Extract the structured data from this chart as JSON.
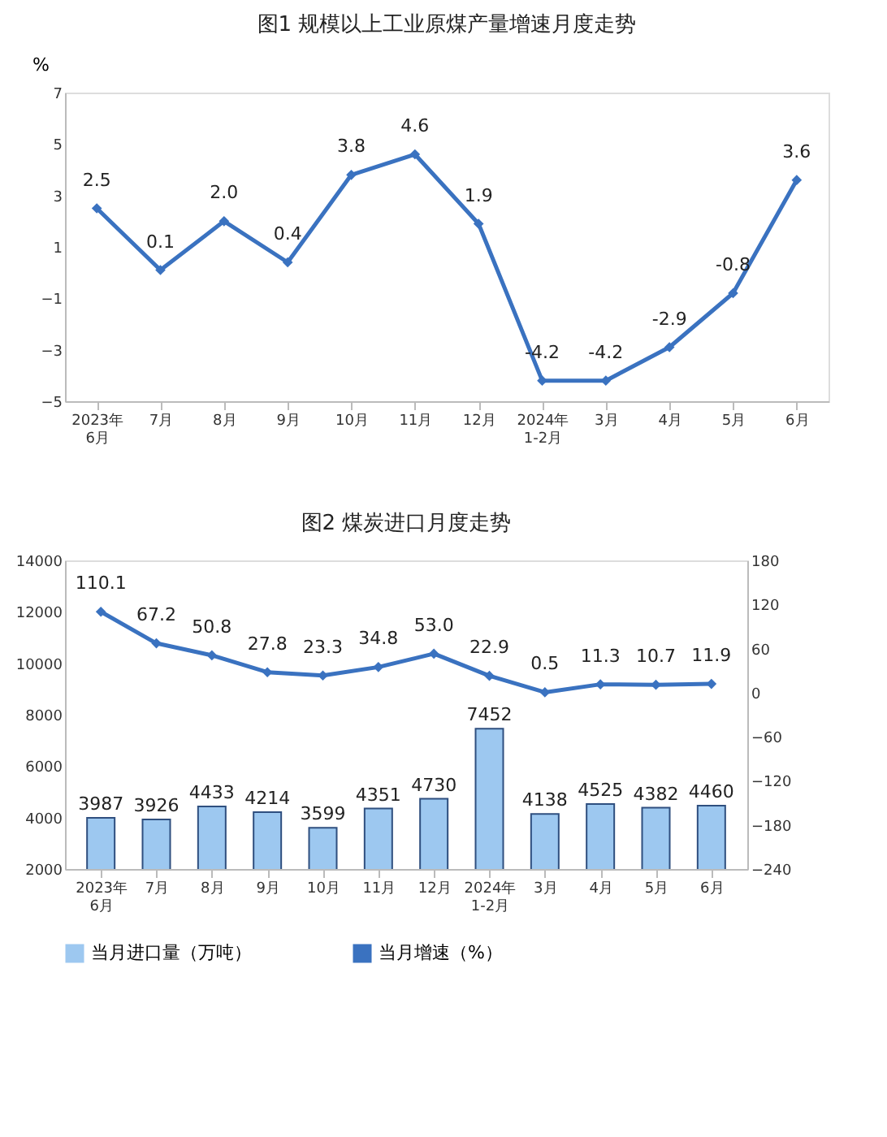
{
  "chart_data": [
    {
      "type": "line",
      "title": "图1  规模以上工业原煤产量增速月度走势",
      "ylabel": "%",
      "categories": [
        "2023年\n6月",
        "7月",
        "8月",
        "9月",
        "10月",
        "11月",
        "12月",
        "2024年\n1-2月",
        "3月",
        "4月",
        "5月",
        "6月"
      ],
      "series": [
        {
          "color": "#3a72c0",
          "values": [
            2.5,
            0.1,
            2.0,
            0.4,
            3.8,
            4.6,
            1.9,
            -4.2,
            -4.2,
            -2.9,
            -0.8,
            3.6
          ],
          "value_labels": [
            "2.5",
            "0.1",
            "2.0",
            "0.4",
            "3.8",
            "4.6",
            "1.9",
            "-4.2",
            "-4.2",
            "-2.9",
            "-0.8",
            "3.6"
          ]
        }
      ],
      "ylim": [
        -5,
        7
      ],
      "yticks": [
        -5,
        -3,
        -1,
        1,
        3,
        5,
        7
      ],
      "grid": false,
      "marker": "diamond"
    },
    {
      "type": "bar",
      "title": "图2  煤炭进口月度走势",
      "categories": [
        "2023年\n6月",
        "7月",
        "8月",
        "9月",
        "10月",
        "11月",
        "12月",
        "2024年\n1-2月",
        "3月",
        "4月",
        "5月",
        "6月"
      ],
      "series": [
        {
          "name": "当月进口量（万吨）",
          "type": "bar",
          "color": "#9dc8f0",
          "values": [
            3987,
            3926,
            4433,
            4214,
            3599,
            4351,
            4730,
            7452,
            4138,
            4525,
            4382,
            4460
          ],
          "value_labels": [
            "3987",
            "3926",
            "4433",
            "4214",
            "3599",
            "4351",
            "4730",
            "7452",
            "4138",
            "4525",
            "4382",
            "4460"
          ]
        },
        {
          "name": "当月增速（%）",
          "type": "line",
          "axis": "y2",
          "color": "#3a72c0",
          "values": [
            110.1,
            67.2,
            50.8,
            27.8,
            23.3,
            34.8,
            53.0,
            22.9,
            0.5,
            11.3,
            10.7,
            11.9
          ],
          "value_labels": [
            "110.1",
            "67.2",
            "50.8",
            "27.8",
            "23.3",
            "34.8",
            "53.0",
            "22.9",
            "0.5",
            "11.3",
            "10.7",
            "11.9"
          ]
        }
      ],
      "ylim": [
        2000,
        14000
      ],
      "yticks": [
        2000,
        4000,
        6000,
        8000,
        10000,
        12000,
        14000
      ],
      "y2lim": [
        -240,
        180
      ],
      "y2ticks": [
        -240,
        -180,
        -120,
        -60,
        0,
        60,
        120,
        180
      ],
      "grid": false,
      "marker": "diamond",
      "legend": "bottom"
    }
  ]
}
